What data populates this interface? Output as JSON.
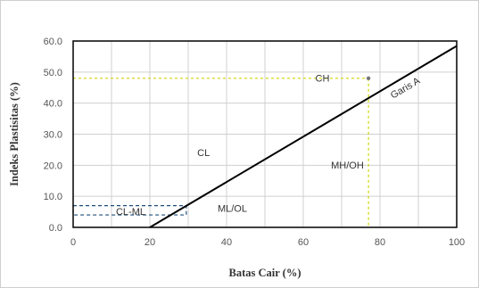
{
  "chart_data": {
    "type": "line",
    "title": "",
    "xlabel": "Batas Cair (%)",
    "ylabel": "Indeks Plastisitas (%)",
    "xlim": [
      0,
      100
    ],
    "ylim": [
      0,
      60
    ],
    "xticks": [
      0,
      20,
      40,
      60,
      80,
      100
    ],
    "yticks": [
      0,
      10,
      20,
      30,
      40,
      50,
      60
    ],
    "xtick_labels": [
      "0",
      "20",
      "40",
      "60",
      "80",
      "100"
    ],
    "ytick_labels": [
      "0.0",
      "10.0",
      "20.0",
      "30.0",
      "40.0",
      "50.0",
      "60.0"
    ],
    "grid": true,
    "series": [
      {
        "name": "Garis A",
        "style": "solid",
        "color": "#000000",
        "x": [
          20,
          100
        ],
        "y": [
          0,
          58.4
        ]
      }
    ],
    "zones": [
      {
        "label": "CL-ML",
        "x": [
          0,
          29.5
        ],
        "y": [
          4,
          7
        ],
        "style": "dashed",
        "color": "#1f4e79"
      }
    ],
    "region_labels": [
      {
        "text": "CH",
        "x": 65,
        "y": 47
      },
      {
        "text": "CL",
        "x": 34,
        "y": 23
      },
      {
        "text": "MH/OH",
        "x": 71.5,
        "y": 19
      },
      {
        "text": "ML/OL",
        "x": 41.5,
        "y": 5
      },
      {
        "text": "CL-ML",
        "x": 15,
        "y": 4
      },
      {
        "text": "Garis A",
        "x": 87,
        "y": 44,
        "rotate": true
      }
    ],
    "points": [
      {
        "x": 77,
        "y": 48,
        "guide_color": "#d4d400"
      }
    ]
  }
}
